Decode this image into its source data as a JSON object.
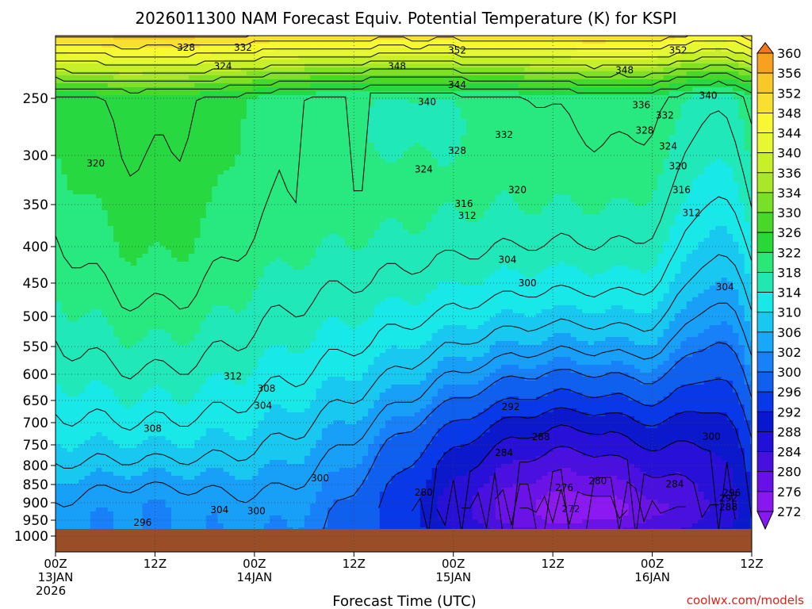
{
  "chart_data": {
    "type": "heatmap",
    "title": "2026011300 NAM Forecast Equiv. Potential Temperature (K) for KSPI",
    "xlabel": "Forecast Time (UTC)",
    "ylabel": "",
    "credit": "coolwx.com/models",
    "xlim": [
      0,
      84
    ],
    "ylim": [
      1025,
      200
    ],
    "x_ticks": [
      {
        "hour": 0,
        "line1": "00Z",
        "line2": "13JAN",
        "line3": "2026"
      },
      {
        "hour": 12,
        "line1": "12Z",
        "line2": "",
        "line3": ""
      },
      {
        "hour": 24,
        "line1": "00Z",
        "line2": "14JAN",
        "line3": ""
      },
      {
        "hour": 36,
        "line1": "12Z",
        "line2": "",
        "line3": ""
      },
      {
        "hour": 48,
        "line1": "00Z",
        "line2": "15JAN",
        "line3": ""
      },
      {
        "hour": 60,
        "line1": "12Z",
        "line2": "",
        "line3": ""
      },
      {
        "hour": 72,
        "line1": "00Z",
        "line2": "16JAN",
        "line3": ""
      },
      {
        "hour": 84,
        "line1": "12Z",
        "line2": "",
        "line3": ""
      }
    ],
    "y_ticks": [
      "250",
      "300",
      "350",
      "400",
      "450",
      "500",
      "550",
      "600",
      "650",
      "700",
      "750",
      "800",
      "850",
      "900",
      "950",
      "1000"
    ],
    "colorbar_levels": [
      "360",
      "356",
      "352",
      "348",
      "344",
      "340",
      "336",
      "334",
      "330",
      "326",
      "322",
      "318",
      "314",
      "310",
      "306",
      "302",
      "300",
      "296",
      "292",
      "288",
      "284",
      "280",
      "276",
      "272"
    ],
    "colorbar_colors": [
      "#f07818",
      "#f8a020",
      "#f8c828",
      "#f8e030",
      "#f8f830",
      "#e8f830",
      "#c8f028",
      "#a8e828",
      "#78e028",
      "#48d828",
      "#28d838",
      "#28e878",
      "#20e8b0",
      "#18e8e8",
      "#18c8f0",
      "#18a8f8",
      "#1880f8",
      "#1060f0",
      "#0838e8",
      "#0818d0",
      "#2010d8",
      "#4810e0",
      "#6810e8",
      "#8818f0"
    ],
    "label_fields": {
      "theta_e_K": "equivalent potential temperature"
    },
    "contour_labels": [
      {
        "v": 328,
        "t": 19.5,
        "p": 212
      },
      {
        "v": 332,
        "t": 28,
        "p": 212
      },
      {
        "v": 324,
        "t": 25,
        "p": 226
      },
      {
        "v": 348,
        "t": 51,
        "p": 226
      },
      {
        "v": 352,
        "t": 60,
        "p": 214
      },
      {
        "v": 344,
        "t": 60,
        "p": 240
      },
      {
        "v": 340,
        "t": 55.5,
        "p": 253
      },
      {
        "v": 348,
        "t": 85,
        "p": 229
      },
      {
        "v": 352,
        "t": 93,
        "p": 214
      },
      {
        "v": 336,
        "t": 87.5,
        "p": 256
      },
      {
        "v": 332,
        "t": 91,
        "p": 265
      },
      {
        "v": 340,
        "t": 97.5,
        "p": 248
      },
      {
        "v": 328,
        "t": 88,
        "p": 278
      },
      {
        "v": 324,
        "t": 91.5,
        "p": 292
      },
      {
        "v": 320,
        "t": 93,
        "p": 311
      },
      {
        "v": 332,
        "t": 67,
        "p": 282
      },
      {
        "v": 328,
        "t": 60,
        "p": 296
      },
      {
        "v": 324,
        "t": 55,
        "p": 314
      },
      {
        "v": 320,
        "t": 6,
        "p": 308
      },
      {
        "v": 320,
        "t": 69,
        "p": 335
      },
      {
        "v": 316,
        "t": 61,
        "p": 349
      },
      {
        "v": 312,
        "t": 61.5,
        "p": 363
      },
      {
        "v": 316,
        "t": 93.5,
        "p": 335
      },
      {
        "v": 312,
        "t": 95,
        "p": 360
      },
      {
        "v": 304,
        "t": 67.5,
        "p": 418
      },
      {
        "v": 300,
        "t": 70.5,
        "p": 450
      },
      {
        "v": 304,
        "t": 100,
        "p": 456
      },
      {
        "v": 312,
        "t": 26.5,
        "p": 604
      },
      {
        "v": 308,
        "t": 31.5,
        "p": 627
      },
      {
        "v": 304,
        "t": 31,
        "p": 662
      },
      {
        "v": 308,
        "t": 14.5,
        "p": 713
      },
      {
        "v": 292,
        "t": 68,
        "p": 664
      },
      {
        "v": 288,
        "t": 72.5,
        "p": 732
      },
      {
        "v": 284,
        "t": 67,
        "p": 769
      },
      {
        "v": 300,
        "t": 98,
        "p": 731
      },
      {
        "v": 300,
        "t": 39.5,
        "p": 833
      },
      {
        "v": 280,
        "t": 81,
        "p": 841
      },
      {
        "v": 276,
        "t": 76,
        "p": 859
      },
      {
        "v": 284,
        "t": 92.5,
        "p": 849
      },
      {
        "v": 280,
        "t": 55,
        "p": 872
      },
      {
        "v": 296,
        "t": 101,
        "p": 873
      },
      {
        "v": 292,
        "t": 100.5,
        "p": 888
      },
      {
        "v": 288,
        "t": 100.5,
        "p": 912
      },
      {
        "v": 272,
        "t": 77,
        "p": 918
      },
      {
        "v": 304,
        "t": 24.5,
        "p": 920
      },
      {
        "v": 300,
        "t": 30,
        "p": 924
      },
      {
        "v": 296,
        "t": 13,
        "p": 957
      }
    ]
  }
}
